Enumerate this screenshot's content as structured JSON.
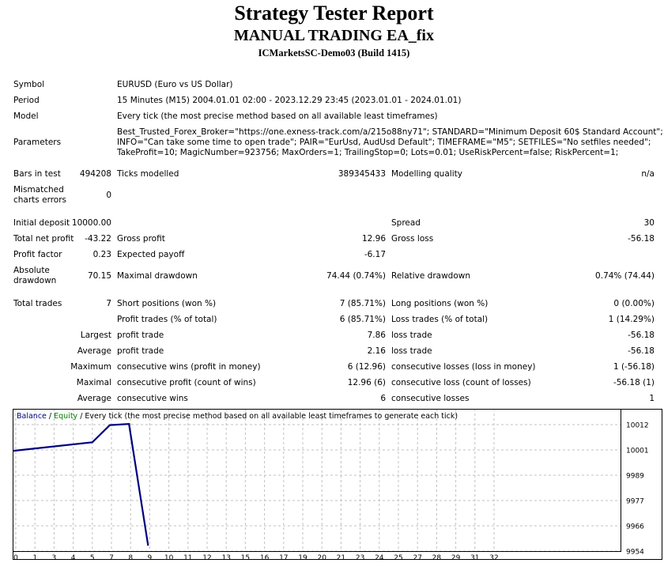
{
  "header": {
    "title": "Strategy Tester Report",
    "subtitle": "MANUAL TRADING EA_fix",
    "build": "ICMarketsSC-Demo03 (Build 1415)"
  },
  "info": {
    "symbol_label": "Symbol",
    "symbol_value": "EURUSD (Euro vs US Dollar)",
    "period_label": "Period",
    "period_value": "15 Minutes (M15) 2004.01.01 02:00 - 2023.12.29 23:45 (2023.01.01 - 2024.01.01)",
    "model_label": "Model",
    "model_value": "Every tick (the most precise method based on all available least timeframes)",
    "params_label": "Parameters",
    "params_line1": "Best_Trusted_Forex_Broker=\"https://one.exness-track.com/a/215o88ny71\"; STANDARD=\"Minimum Deposit 60$ Standard Account\";",
    "params_line2": "INFO=\"Can take some time to open trade\"; PAIR=\"EurUsd, AudUsd Default\"; TIMEFRAME=\"M5\"; SETFILES=\"No setfiles needed\";",
    "params_line3": "TakeProfit=10; MagicNumber=923756; MaxOrders=1; TrailingStop=0; Lots=0.01; UseRiskPercent=false; RiskPercent=1;"
  },
  "stats": {
    "bars_label": "Bars in test",
    "bars_value": "494208",
    "ticks_label": "Ticks modelled",
    "ticks_value": "389345433",
    "quality_label": "Modelling quality",
    "quality_value": "n/a",
    "mismatch_label1": "Mismatched",
    "mismatch_label2": "charts errors",
    "mismatch_value": "0",
    "deposit_label": "Initial deposit",
    "deposit_value": "10000.00",
    "spread_label": "Spread",
    "spread_value": "30",
    "netprofit_label": "Total net profit",
    "netprofit_value": "-43.22",
    "grossprofit_label": "Gross profit",
    "grossprofit_value": "12.96",
    "grossloss_label": "Gross loss",
    "grossloss_value": "-56.18",
    "pf_label": "Profit factor",
    "pf_value": "0.23",
    "ep_label": "Expected payoff",
    "ep_value": "-6.17",
    "absdd_label1": "Absolute",
    "absdd_label2": "drawdown",
    "absdd_value": "70.15",
    "maxdd_label": "Maximal drawdown",
    "maxdd_value": "74.44 (0.74%)",
    "reldd_label": "Relative drawdown",
    "reldd_value": "0.74% (74.44)",
    "trades_label": "Total trades",
    "trades_value": "7",
    "short_label": "Short positions (won %)",
    "short_value": "7 (85.71%)",
    "long_label": "Long positions (won %)",
    "long_value": "0 (0.00%)",
    "pt_label": "Profit trades (% of total)",
    "pt_value": "6 (85.71%)",
    "lt_label": "Loss trades (% of total)",
    "lt_value": "1 (14.29%)",
    "largest_label": "Largest",
    "largest_profit_label": "profit trade",
    "largest_profit_value": "7.86",
    "largest_loss_label": "loss trade",
    "largest_loss_value": "-56.18",
    "average_label": "Average",
    "average_profit_label": "profit trade",
    "average_profit_value": "2.16",
    "average_loss_label": "loss trade",
    "average_loss_value": "-56.18",
    "maximum_label": "Maximum",
    "mcw_label": "consecutive wins (profit in money)",
    "mcw_value": "6 (12.96)",
    "mcl_label": "consecutive losses (loss in money)",
    "mcl_value": "1 (-56.18)",
    "maximal_label": "Maximal",
    "mcp_label": "consecutive profit (count of wins)",
    "mcp_value": "12.96 (6)",
    "mcloss_label": "consecutive loss (count of losses)",
    "mcloss_value": "-56.18 (1)",
    "average2_label": "Average",
    "acw_label": "consecutive wins",
    "acw_value": "6",
    "acl_label": "consecutive losses",
    "acl_value": "1"
  },
  "chart_legend": {
    "balance": "Balance",
    "sep1": " / ",
    "equity": "Equity",
    "rest": " / Every tick (the most precise method based on all available least timeframes to generate each tick)"
  },
  "colors": {
    "balance": "#000080",
    "equity": "#008000",
    "grid": "#c0c0c0",
    "border": "#000000"
  },
  "chart_data": {
    "type": "line",
    "xticks": [
      "0",
      "1",
      "3",
      "4",
      "5",
      "7",
      "8",
      "9",
      "10",
      "11",
      "12",
      "13",
      "15",
      "16",
      "17",
      "19",
      "20",
      "21",
      "23",
      "24",
      "25",
      "27",
      "28",
      "29",
      "31",
      "32"
    ],
    "yticks": [
      "10012",
      "10001",
      "9989",
      "9977",
      "9966",
      "9954"
    ],
    "ylim": [
      9954,
      10012
    ],
    "series": [
      {
        "name": "Balance",
        "points": [
          [
            0,
            10000.0
          ],
          [
            4,
            10003.9
          ],
          [
            5,
            10011.8
          ],
          [
            6,
            10012.3
          ],
          [
            7,
            9956.5
          ]
        ]
      }
    ]
  }
}
